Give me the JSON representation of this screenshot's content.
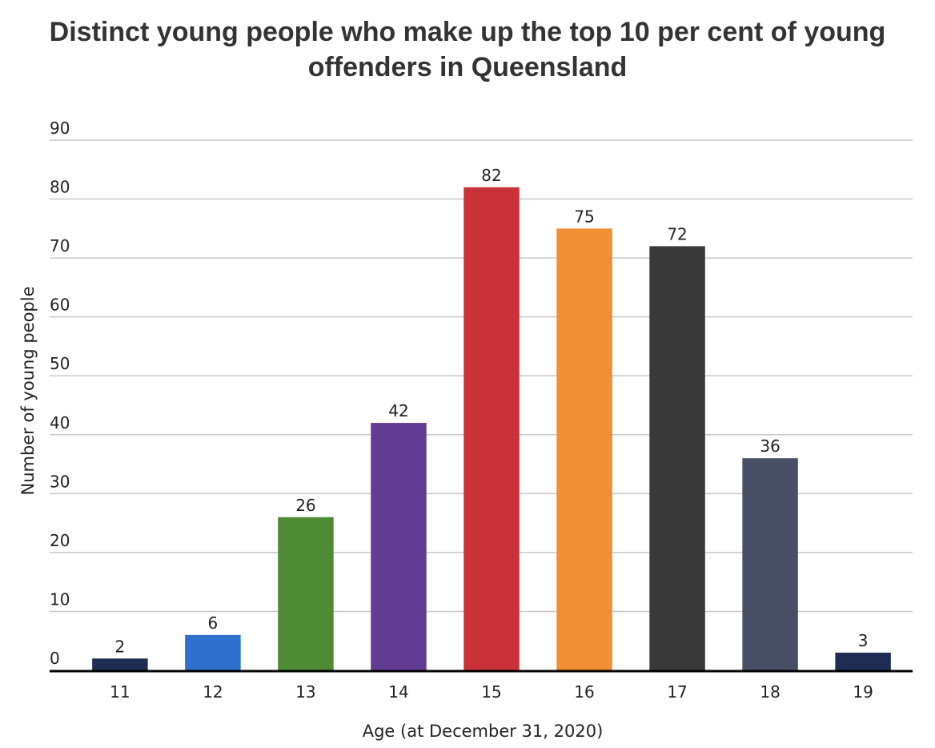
{
  "chart_data": {
    "type": "bar",
    "title": "Distinct young people who make up the top 10 per cent of young offenders in Queensland",
    "xlabel": "Age (at December 31, 2020)",
    "ylabel": "Number of young people",
    "categories": [
      "11",
      "12",
      "13",
      "14",
      "15",
      "16",
      "17",
      "18",
      "19"
    ],
    "values": [
      2,
      6,
      26,
      42,
      82,
      75,
      72,
      36,
      3
    ],
    "colors": [
      "#1f2d55",
      "#2e6fce",
      "#4f8b35",
      "#623c92",
      "#c83238",
      "#f08f34",
      "#393939",
      "#475064",
      "#1f2d55"
    ],
    "ylim": [
      0,
      90
    ],
    "yticks": [
      "0",
      "10",
      "20",
      "30",
      "40",
      "50",
      "60",
      "70",
      "80",
      "90"
    ],
    "grid": true,
    "data_labels": true
  }
}
